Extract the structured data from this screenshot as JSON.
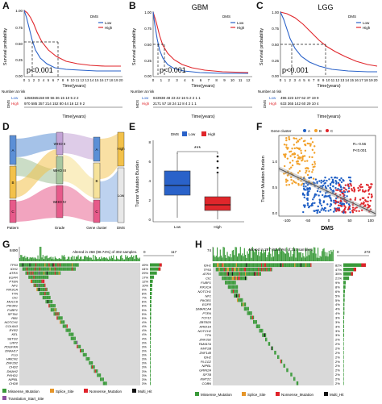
{
  "panels": {
    "A": {
      "label": "A",
      "ylabel": "Survival probability",
      "xlabel": "Time(years)",
      "yticks": [
        "0.00",
        "0.25",
        "0.50",
        "0.75",
        "1.00"
      ],
      "xticks": [
        "0",
        "1",
        "2",
        "3",
        "4",
        "5",
        "6",
        "7",
        "8",
        "9",
        "10",
        "11",
        "12",
        "13",
        "14",
        "15",
        "16",
        "17",
        "18",
        "19",
        "20"
      ],
      "legend_title": "DMS",
      "legend": [
        "Low",
        "High"
      ],
      "pvalue": "p<0.001",
      "risk_title": "Number at risk",
      "risk_axis": "DMS",
      "risk_rows": [
        {
          "name": "Low",
          "values": "1258365158 80 56 36 15 10 5 2 2"
        },
        {
          "name": "High",
          "values": "970 585 357 214 152 80 44 16 12 9 2"
        }
      ],
      "risk_x": [
        "0",
        "2",
        "4",
        "6",
        "8",
        "10",
        "12",
        "14",
        "16",
        "18",
        "20"
      ]
    },
    "B": {
      "label": "B",
      "title": "GBM",
      "xlabel": "Time(years)",
      "yticks": [
        "0.00",
        "0.25",
        "0.50",
        "0.75",
        "1.00"
      ],
      "xticks": [
        "0",
        "1",
        "2",
        "3",
        "4",
        "5",
        "6",
        "7",
        "8",
        "9",
        "10",
        "11",
        "12"
      ],
      "legend_title": "DMS",
      "legend": [
        "Low",
        "High"
      ],
      "pvalue": "p<0.001",
      "risk_title": "Number at risk",
      "risk_axis": "MDS",
      "risk_rows": [
        {
          "name": "Low",
          "values": "843938 48 23 22 16 5 2 2 1 1"
        },
        {
          "name": "High",
          "values": "2171 57 18 24 12 8 4 2 1 1"
        }
      ],
      "risk_x": [
        "0",
        "1",
        "2",
        "3",
        "4",
        "5",
        "6",
        "7",
        "8",
        "9",
        "10",
        "11",
        "12"
      ]
    },
    "C": {
      "label": "C",
      "title": "LGG",
      "xlabel": "Time(years)",
      "yticks": [
        "0.00",
        "0.25",
        "0.50",
        "0.75",
        "1.00"
      ],
      "legend_title": "DMS",
      "legend": [
        "Low",
        "High"
      ],
      "pvalue": "p<0.001",
      "risk_title": "Number at risk",
      "risk_axis": "DMS",
      "risk_rows": [
        {
          "name": "Low",
          "values": "496 223 107 62 37 19 9"
        },
        {
          "name": "High",
          "values": "633 365 142 60 29 10 4"
        }
      ]
    },
    "D": {
      "label": "D",
      "axis_labels": [
        "Pattern",
        "Grade",
        "Gene cluster",
        "DMS"
      ],
      "pattern_nodes": [
        "A",
        "B",
        "C"
      ],
      "grade_nodes": [
        "WHO II",
        "WHO III",
        "WHO IV"
      ],
      "cluster_nodes": [
        "A",
        "B",
        "C"
      ],
      "dms_nodes": [
        "High",
        "Low"
      ]
    },
    "E": {
      "label": "E",
      "legend_title": "DMS",
      "legend": [
        "Low",
        "High"
      ],
      "ylabel": "Tumor Mutation Burden",
      "yticks": [
        "0",
        "2",
        "4",
        "6",
        "8"
      ],
      "categories": [
        "Low",
        "High"
      ],
      "signif": "***"
    },
    "F": {
      "label": "F",
      "legend_title": "Gene cluster",
      "legend": [
        "A",
        "B",
        "C"
      ],
      "ylabel": "Tumor Mutation Burden",
      "xlabel": "DMS",
      "xticks": [
        "-100",
        "-50",
        "0",
        "50",
        "100"
      ],
      "yticks": [
        "0.0",
        "0.5",
        "1.0"
      ],
      "r": "R=-0.56",
      "p": "P<0.001"
    },
    "G": {
      "label": "G",
      "top_max": "8490",
      "title": "Altered in 268 (88.74%) of 302 samples.",
      "right_axis": [
        "0",
        "117"
      ],
      "genes": [
        "TP53",
        "IDH1",
        "ATRX",
        "EGFR",
        "PTEN",
        "NF1",
        "PIK3CA",
        "TTN",
        "CIC",
        "MUC16",
        "PIK3R1",
        "FUBP1",
        "SPTA1",
        "RB1",
        "NOTCH1",
        "COL6A3",
        "RYR2",
        "KEL",
        "SETD2",
        "LRP2",
        "PDGFRA",
        "DNAH17",
        "FLG",
        "HMCN1",
        "ZNF292",
        "CHD2",
        "DNAH2",
        "PKHD1",
        "NIPBL",
        "CHD8"
      ],
      "pcts": [
        "49%",
        "44%",
        "29%",
        "17%",
        "12%",
        "10%",
        "9%",
        "8%",
        "7%",
        "6%",
        "6%",
        "5%",
        "5%",
        "5%",
        "4%",
        "4%",
        "4%",
        "4%",
        "4%",
        "3%",
        "3%",
        "3%",
        "3%",
        "3%",
        "3%",
        "3%",
        "3%",
        "3%",
        "3%",
        "3%"
      ],
      "legend": [
        "Missense_Mutation",
        "Splice_Site",
        "Nonsense_Mutation",
        "Multi_Hit",
        "Translation_Start_Site"
      ],
      "legend_colors": [
        "#3a9a3a",
        "#e69528",
        "#e0222a",
        "#111111",
        "#8b4f9e"
      ]
    },
    "H": {
      "label": "H",
      "top_max": "74",
      "title": "Altered in 297 (93.69%) of 317 samples.",
      "right_axis": [
        "0",
        "272"
      ],
      "genes": [
        "IDH1",
        "TP53",
        "ATRX",
        "CIC",
        "FUBP1",
        "PIK3CA",
        "NOTCH1",
        "NF1",
        "PIK3R1",
        "EGFR",
        "SMARCA4",
        "PTEN",
        "TCF12",
        "ZBTB20",
        "ARID1A",
        "NOTCH2",
        "TTN",
        "ZNF292",
        "FAM47A",
        "KMT2B",
        "ZNF148",
        "IDH2",
        "PLCG2",
        "NIPBL",
        "GRIN2A",
        "SPTB",
        "KMT2C",
        "COBN"
      ],
      "pcts": [
        "82%",
        "47%",
        "35%",
        "21%",
        "9%",
        "8%",
        "6%",
        "5%",
        "5%",
        "4%",
        "4%",
        "4%",
        "3%",
        "3%",
        "3%",
        "3%",
        "3%",
        "2%",
        "2%",
        "2%",
        "2%",
        "2%",
        "2%",
        "2%",
        "2%",
        "2%",
        "2%",
        "2%"
      ],
      "legend": [
        "Missense_Mutation",
        "Splice_Site",
        "Nonsense_Mutation",
        "Multi_Hit"
      ],
      "legend_colors": [
        "#3a9a3a",
        "#e69528",
        "#e0222a",
        "#111111"
      ]
    }
  },
  "colors": {
    "low": "#2a62c9",
    "high": "#e0262b",
    "clusterA": "#1f5fc5",
    "clusterB": "#f2a12a",
    "clusterC": "#e0262b",
    "missense": "#3a9a3a",
    "splice": "#e69528",
    "nonsense": "#e0222a",
    "multihit": "#111111",
    "tss": "#8b4f9e",
    "alluvial": [
      "#5b8fd6",
      "#f3c14a",
      "#e75a8a",
      "#a8c7a0",
      "#c3a3d6",
      "#f6e29a"
    ]
  }
}
